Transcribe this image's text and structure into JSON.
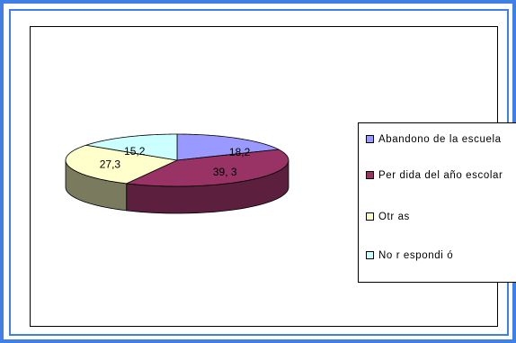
{
  "chart_data": {
    "type": "pie",
    "title": "",
    "style": "3d",
    "slices": [
      {
        "name": "Abandono de la escuela",
        "value": 18.2,
        "label": "18,2",
        "color": "#9999ff",
        "side_color": "#5c5c99"
      },
      {
        "name": "Per dida del año escolar",
        "value": 39.3,
        "label": "39, 3",
        "color": "#993366",
        "side_color": "#5c1f3d"
      },
      {
        "name": "Otr as",
        "value": 27.3,
        "label": "27,3",
        "color": "#ffffcc",
        "side_color": "#7a7a5e"
      },
      {
        "name": "No r espondi ó",
        "value": 15.2,
        "label": "15,2",
        "color": "#ccffff",
        "side_color": "#7a9999"
      }
    ],
    "legend_position": "right"
  }
}
